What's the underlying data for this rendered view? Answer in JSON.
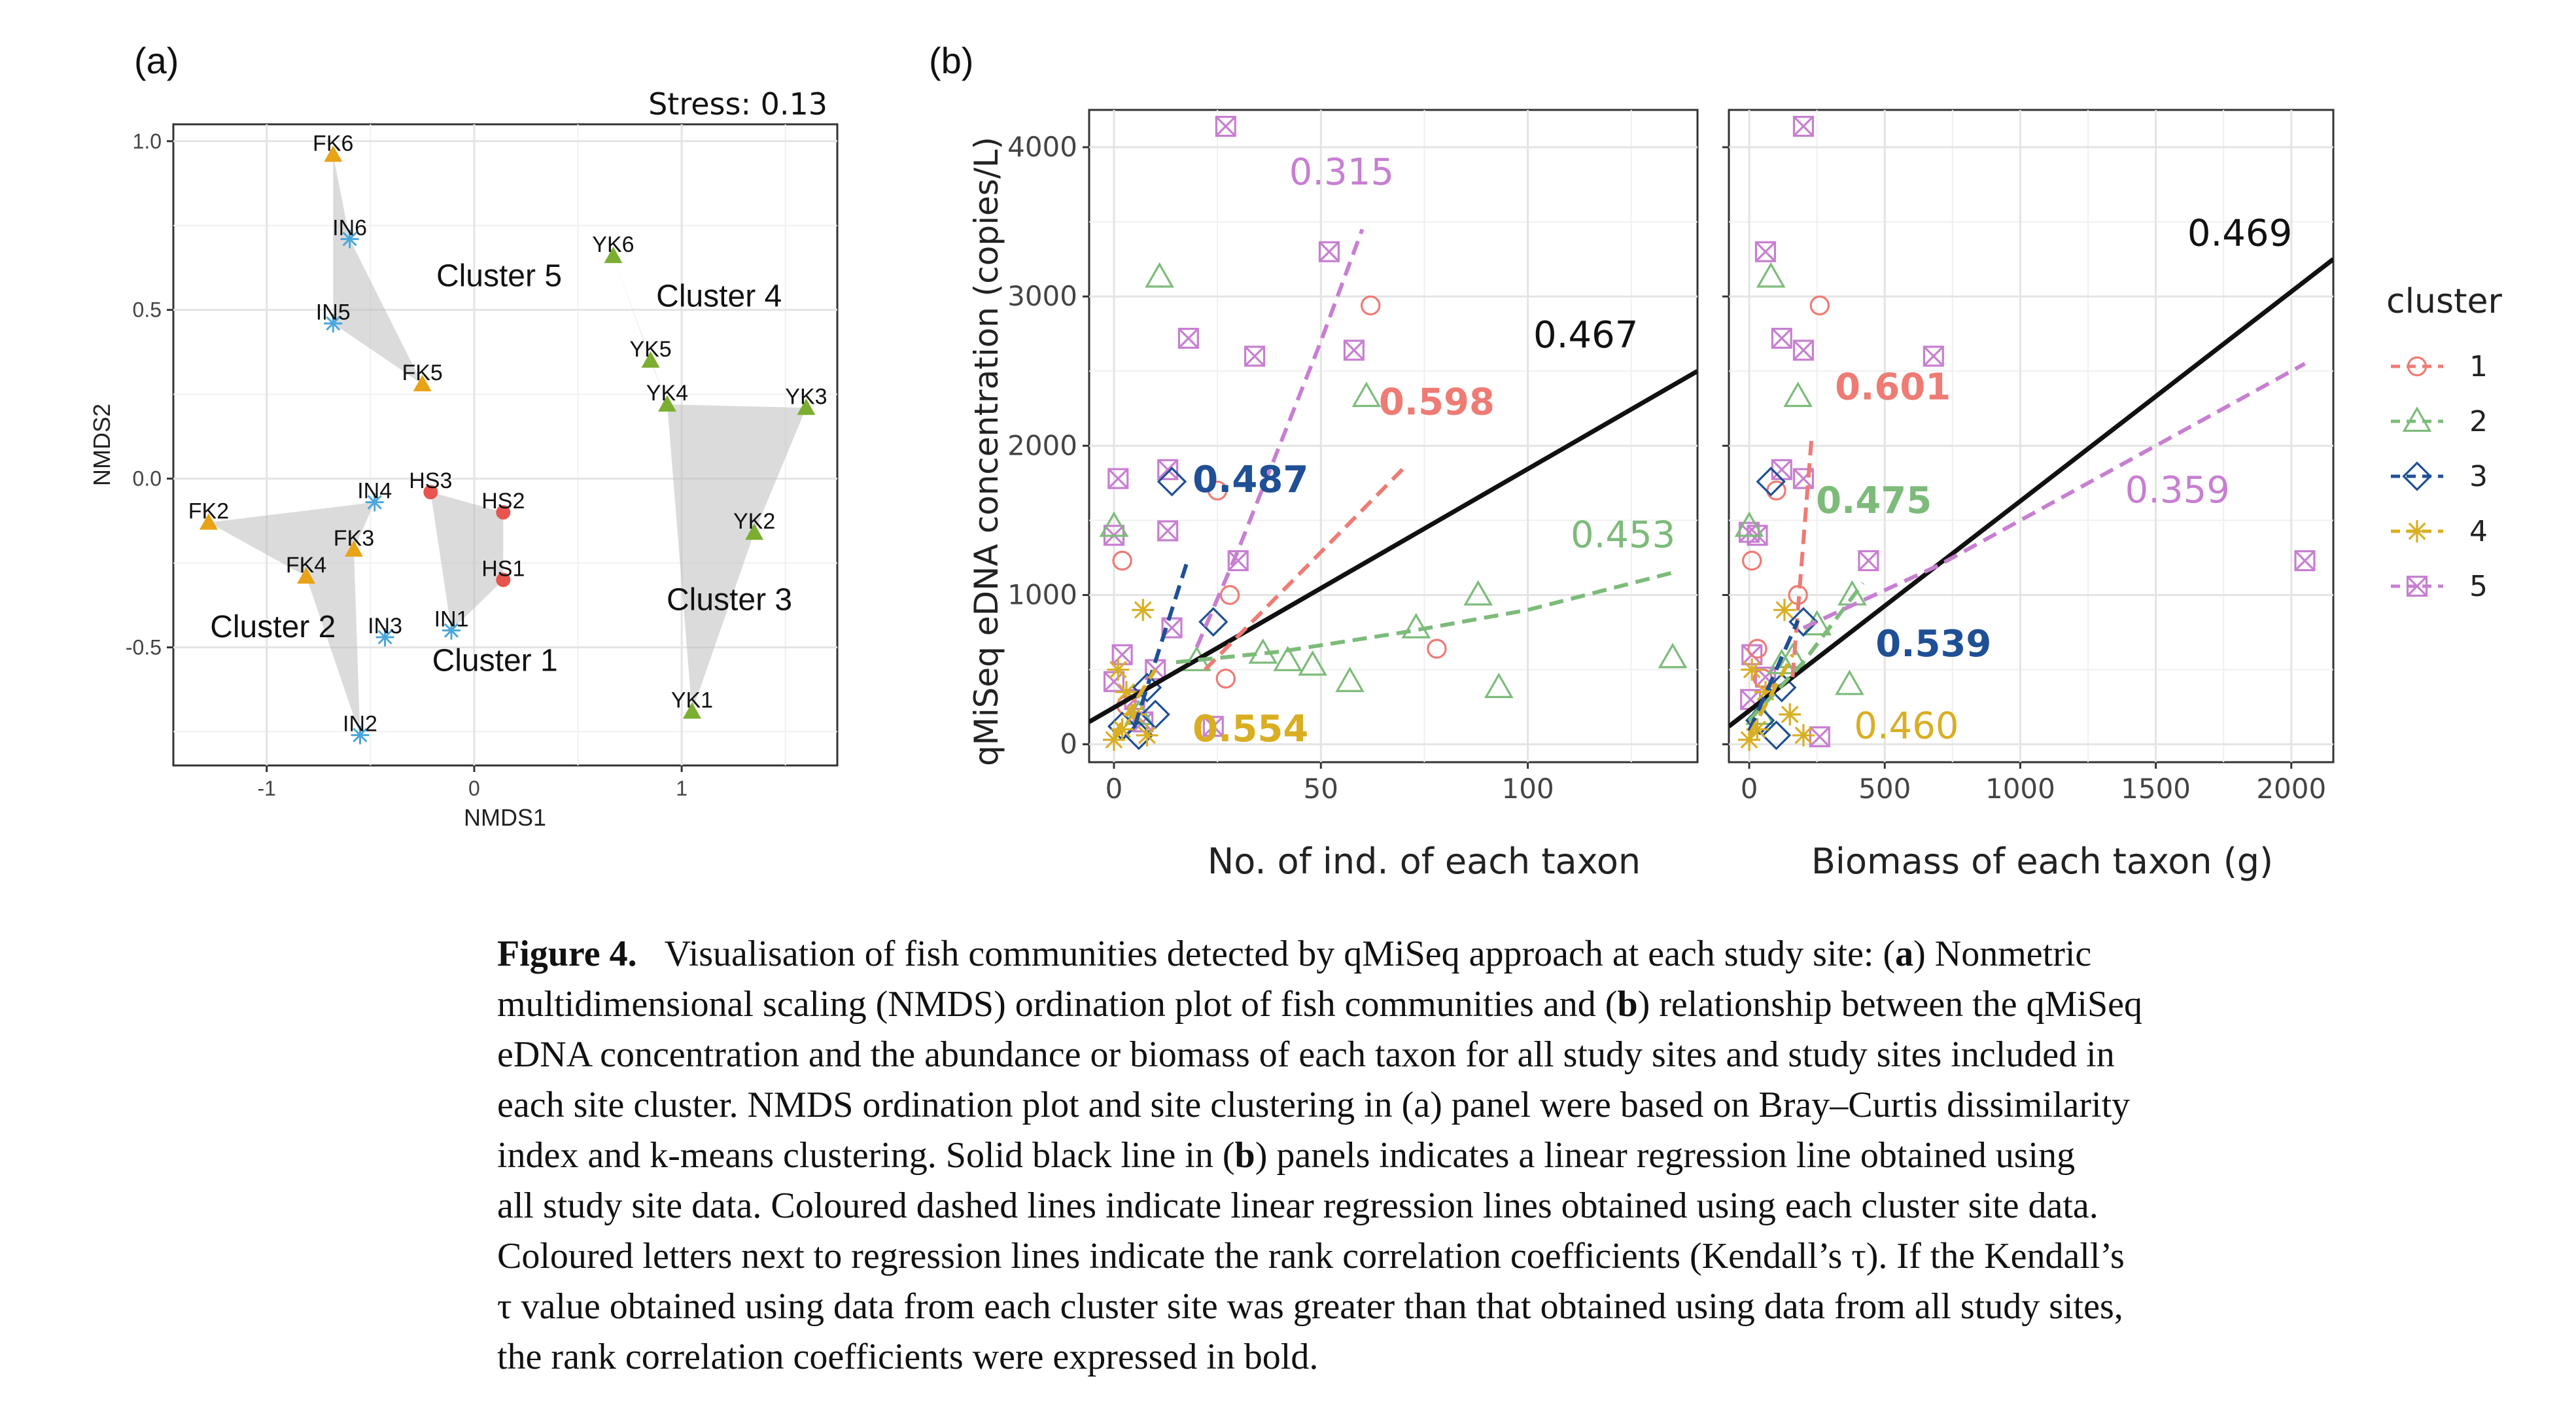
{
  "panel_a": {
    "label": "(a)",
    "stress_text": "Stress: 0.13",
    "xlabel": "NMDS1",
    "ylabel": "NMDS2",
    "xlim": [
      -1.45,
      1.75
    ],
    "ylim": [
      -0.85,
      1.05
    ],
    "xticks": [
      {
        "v": -1,
        "t": "-1"
      },
      {
        "v": 0,
        "t": "0"
      },
      {
        "v": 1,
        "t": "1"
      }
    ],
    "yticks": [
      {
        "v": 1.0,
        "t": "1.0"
      },
      {
        "v": 0.5,
        "t": "0.5"
      },
      {
        "v": 0.0,
        "t": "0.0"
      },
      {
        "v": -0.5,
        "t": "-0.5"
      }
    ],
    "sites": [
      {
        "id": "FK6",
        "x": -0.68,
        "y": 0.96,
        "cluster": "2"
      },
      {
        "id": "IN6",
        "x": -0.6,
        "y": 0.71,
        "cluster": "5"
      },
      {
        "id": "IN5",
        "x": -0.68,
        "y": 0.46,
        "cluster": "5"
      },
      {
        "id": "FK5",
        "x": -0.25,
        "y": 0.28,
        "cluster": "2"
      },
      {
        "id": "YK6",
        "x": 0.67,
        "y": 0.66,
        "cluster": "3"
      },
      {
        "id": "YK5",
        "x": 0.85,
        "y": 0.35,
        "cluster": "3"
      },
      {
        "id": "YK4",
        "x": 0.93,
        "y": 0.22,
        "cluster": "3"
      },
      {
        "id": "YK3",
        "x": 1.6,
        "y": 0.21,
        "cluster": "3"
      },
      {
        "id": "YK2",
        "x": 1.35,
        "y": -0.16,
        "cluster": "3"
      },
      {
        "id": "YK1",
        "x": 1.05,
        "y": -0.69,
        "cluster": "3"
      },
      {
        "id": "IN4",
        "x": -0.48,
        "y": -0.07,
        "cluster": "5"
      },
      {
        "id": "HS3",
        "x": -0.21,
        "y": -0.04,
        "cluster": "1"
      },
      {
        "id": "HS2",
        "x": 0.14,
        "y": -0.1,
        "cluster": "1"
      },
      {
        "id": "HS1",
        "x": 0.14,
        "y": -0.3,
        "cluster": "1"
      },
      {
        "id": "FK2",
        "x": -1.28,
        "y": -0.13,
        "cluster": "2"
      },
      {
        "id": "FK3",
        "x": -0.58,
        "y": -0.21,
        "cluster": "2"
      },
      {
        "id": "FK4",
        "x": -0.81,
        "y": -0.29,
        "cluster": "2"
      },
      {
        "id": "IN1",
        "x": -0.11,
        "y": -0.45,
        "cluster": "5"
      },
      {
        "id": "IN3",
        "x": -0.43,
        "y": -0.47,
        "cluster": "5"
      },
      {
        "id": "IN2",
        "x": -0.55,
        "y": -0.76,
        "cluster": "5"
      }
    ],
    "hulls": [
      {
        "label": "Cluster 5",
        "points": [
          "FK6",
          "IN6",
          "FK5",
          "IN5"
        ],
        "lx": 0.12,
        "ly": 0.57
      },
      {
        "label": "Cluster 4",
        "points": [
          "YK6",
          "YK4",
          "YK5"
        ],
        "lx": 1.18,
        "ly": 0.51
      },
      {
        "label": "Cluster 3",
        "points": [
          "YK3",
          "YK2",
          "YK1",
          "YK4"
        ],
        "lx": 1.23,
        "ly": -0.39
      },
      {
        "label": "Cluster 2",
        "points": [
          "FK2",
          "IN4",
          "FK3",
          "IN2",
          "FK4"
        ],
        "lx": -0.97,
        "ly": -0.47
      },
      {
        "label": "Cluster 1",
        "points": [
          "HS3",
          "HS2",
          "HS1",
          "IN1"
        ],
        "lx": 0.1,
        "ly": -0.57
      }
    ]
  },
  "panel_b": {
    "label": "(b)",
    "ylabel": "qMiSeq eDNA concentration (copies/L)",
    "ylim": [
      -120,
      4250
    ],
    "yticks": [
      0,
      1000,
      2000,
      3000,
      4000
    ],
    "legend_title": "cluster",
    "legend_items": [
      "1",
      "2",
      "3",
      "4",
      "5"
    ],
    "cluster_colors": {
      "1": "#ee7b74",
      "2": "#7dbb7a",
      "3": "#1f4f95",
      "4": "#d9ae22",
      "5": "#c77fd1"
    },
    "cluster_shapes": {
      "1": "circle",
      "2": "triangle",
      "3": "diamond",
      "4": "star",
      "5": "boxx"
    },
    "left": {
      "xlabel": "No. of ind. of each taxon",
      "xlim": [
        -6,
        141
      ],
      "xticks": [
        0,
        50,
        100
      ],
      "points": [
        {
          "c": "5",
          "x": 27,
          "y": 4140
        },
        {
          "c": "5",
          "x": 52,
          "y": 3300
        },
        {
          "c": "5",
          "x": 34,
          "y": 2600
        },
        {
          "c": "5",
          "x": 58,
          "y": 2640
        },
        {
          "c": "5",
          "x": 18,
          "y": 2720
        },
        {
          "c": "5",
          "x": 1,
          "y": 1780
        },
        {
          "c": "5",
          "x": 13,
          "y": 1840
        },
        {
          "c": "5",
          "x": 13,
          "y": 1430
        },
        {
          "c": "5",
          "x": 0,
          "y": 1400
        },
        {
          "c": "5",
          "x": 30,
          "y": 1230
        },
        {
          "c": "5",
          "x": 14,
          "y": 780
        },
        {
          "c": "5",
          "x": 10,
          "y": 500
        },
        {
          "c": "5",
          "x": 24,
          "y": 120
        },
        {
          "c": "5",
          "x": 2,
          "y": 600
        },
        {
          "c": "5",
          "x": 5,
          "y": 300
        },
        {
          "c": "5",
          "x": 7,
          "y": 150
        },
        {
          "c": "5",
          "x": 0,
          "y": 420
        },
        {
          "c": "1",
          "x": 62,
          "y": 2940
        },
        {
          "c": "1",
          "x": 25,
          "y": 1700
        },
        {
          "c": "1",
          "x": 28,
          "y": 1000
        },
        {
          "c": "1",
          "x": 78,
          "y": 640
        },
        {
          "c": "1",
          "x": 27,
          "y": 440
        },
        {
          "c": "1",
          "x": 2,
          "y": 1230
        },
        {
          "c": "1",
          "x": 3,
          "y": 260
        },
        {
          "c": "2",
          "x": 11,
          "y": 3130
        },
        {
          "c": "2",
          "x": 61,
          "y": 2330
        },
        {
          "c": "2",
          "x": 0,
          "y": 1460
        },
        {
          "c": "2",
          "x": 88,
          "y": 1000
        },
        {
          "c": "2",
          "x": 73,
          "y": 780
        },
        {
          "c": "2",
          "x": 135,
          "y": 580
        },
        {
          "c": "2",
          "x": 36,
          "y": 610
        },
        {
          "c": "2",
          "x": 42,
          "y": 560
        },
        {
          "c": "2",
          "x": 48,
          "y": 530
        },
        {
          "c": "2",
          "x": 57,
          "y": 420
        },
        {
          "c": "2",
          "x": 93,
          "y": 380
        },
        {
          "c": "2",
          "x": 20,
          "y": 560
        },
        {
          "c": "2",
          "x": 6,
          "y": 200
        },
        {
          "c": "3",
          "x": 14,
          "y": 1760
        },
        {
          "c": "3",
          "x": 24,
          "y": 820
        },
        {
          "c": "3",
          "x": 8,
          "y": 380
        },
        {
          "c": "3",
          "x": 10,
          "y": 200
        },
        {
          "c": "3",
          "x": 6,
          "y": 60
        },
        {
          "c": "3",
          "x": 2,
          "y": 120
        },
        {
          "c": "4",
          "x": 7,
          "y": 900
        },
        {
          "c": "4",
          "x": 1,
          "y": 500
        },
        {
          "c": "4",
          "x": 3,
          "y": 350
        },
        {
          "c": "4",
          "x": 5,
          "y": 200
        },
        {
          "c": "4",
          "x": 2,
          "y": 100
        },
        {
          "c": "4",
          "x": 8,
          "y": 60
        },
        {
          "c": "4",
          "x": 0,
          "y": 30
        }
      ],
      "lines": [
        {
          "c": "all",
          "x": [
            -6,
            141
          ],
          "y": [
            150,
            2500
          ]
        },
        {
          "c": "1",
          "x": [
            22,
            70
          ],
          "y": [
            500,
            1850
          ]
        },
        {
          "c": "2",
          "x": [
            15,
            40,
            70,
            100,
            135
          ],
          "y": [
            550,
            620,
            750,
            900,
            1150
          ]
        },
        {
          "c": "3",
          "x": [
            5,
            18
          ],
          "y": [
            120,
            1250
          ]
        },
        {
          "c": "4",
          "x": [
            0,
            10
          ],
          "y": [
            60,
            500
          ]
        },
        {
          "c": "5",
          "x": [
            20,
            30,
            40,
            50,
            60
          ],
          "y": [
            650,
            1300,
            2000,
            2700,
            3450
          ]
        }
      ],
      "labels": [
        {
          "text": "0.315",
          "c": "5",
          "x": 55,
          "y": 3750,
          "bold": false
        },
        {
          "text": "0.467",
          "c": "all",
          "x": 114,
          "y": 2660,
          "bold": false
        },
        {
          "text": "0.598",
          "c": "1",
          "x": 78,
          "y": 2210,
          "bold": true
        },
        {
          "text": "0.487",
          "c": "3",
          "x": 33,
          "y": 1690,
          "bold": true
        },
        {
          "text": "0.453",
          "c": "2",
          "x": 123,
          "y": 1320,
          "bold": false
        },
        {
          "text": "0.554",
          "c": "4",
          "x": 33,
          "y": 20,
          "bold": true
        }
      ]
    },
    "right": {
      "xlabel": "Biomass of each taxon (g)",
      "xlim": [
        -75,
        2155
      ],
      "xticks": [
        0,
        500,
        1000,
        1500,
        2000
      ],
      "points": [
        {
          "c": "5",
          "x": 200,
          "y": 4140
        },
        {
          "c": "5",
          "x": 60,
          "y": 3300
        },
        {
          "c": "5",
          "x": 120,
          "y": 2720
        },
        {
          "c": "5",
          "x": 200,
          "y": 2640
        },
        {
          "c": "5",
          "x": 680,
          "y": 2600
        },
        {
          "c": "5",
          "x": 120,
          "y": 1840
        },
        {
          "c": "5",
          "x": 200,
          "y": 1780
        },
        {
          "c": "5",
          "x": 2050,
          "y": 1230
        },
        {
          "c": "5",
          "x": 440,
          "y": 1230
        },
        {
          "c": "5",
          "x": 0,
          "y": 1420
        },
        {
          "c": "5",
          "x": 30,
          "y": 1400
        },
        {
          "c": "5",
          "x": 10,
          "y": 600
        },
        {
          "c": "5",
          "x": 260,
          "y": 50
        },
        {
          "c": "5",
          "x": 5,
          "y": 300
        },
        {
          "c": "5",
          "x": 60,
          "y": 450
        },
        {
          "c": "1",
          "x": 260,
          "y": 2940
        },
        {
          "c": "1",
          "x": 100,
          "y": 1700
        },
        {
          "c": "1",
          "x": 180,
          "y": 1000
        },
        {
          "c": "1",
          "x": 10,
          "y": 1230
        },
        {
          "c": "1",
          "x": 30,
          "y": 640
        },
        {
          "c": "1",
          "x": 50,
          "y": 440
        },
        {
          "c": "2",
          "x": 80,
          "y": 3130
        },
        {
          "c": "2",
          "x": 180,
          "y": 2330
        },
        {
          "c": "2",
          "x": 0,
          "y": 1460
        },
        {
          "c": "2",
          "x": 380,
          "y": 1000
        },
        {
          "c": "2",
          "x": 250,
          "y": 800
        },
        {
          "c": "2",
          "x": 160,
          "y": 580
        },
        {
          "c": "2",
          "x": 370,
          "y": 400
        },
        {
          "c": "2",
          "x": 120,
          "y": 540
        },
        {
          "c": "2",
          "x": 40,
          "y": 200
        },
        {
          "c": "3",
          "x": 80,
          "y": 1760
        },
        {
          "c": "3",
          "x": 200,
          "y": 820
        },
        {
          "c": "3",
          "x": 120,
          "y": 380
        },
        {
          "c": "3",
          "x": 40,
          "y": 160
        },
        {
          "c": "3",
          "x": 100,
          "y": 60
        },
        {
          "c": "4",
          "x": 130,
          "y": 900
        },
        {
          "c": "4",
          "x": 10,
          "y": 500
        },
        {
          "c": "4",
          "x": 60,
          "y": 350
        },
        {
          "c": "4",
          "x": 150,
          "y": 200
        },
        {
          "c": "4",
          "x": 30,
          "y": 100
        },
        {
          "c": "4",
          "x": 200,
          "y": 60
        },
        {
          "c": "4",
          "x": 0,
          "y": 30
        }
      ],
      "lines": [
        {
          "c": "all",
          "x": [
            -75,
            2155
          ],
          "y": [
            120,
            3250
          ]
        },
        {
          "c": "1",
          "x": [
            160,
            230
          ],
          "y": [
            450,
            2050
          ]
        },
        {
          "c": "2",
          "x": [
            0,
            200,
            420
          ],
          "y": [
            160,
            550,
            1080
          ]
        },
        {
          "c": "3",
          "x": [
            0,
            180
          ],
          "y": [
            90,
            830
          ]
        },
        {
          "c": "4",
          "x": [
            0,
            160
          ],
          "y": [
            60,
            600
          ]
        },
        {
          "c": "5",
          "x": [
            200,
            700,
            1200,
            1700,
            2050
          ],
          "y": [
            780,
            1200,
            1700,
            2200,
            2550
          ]
        }
      ],
      "labels": [
        {
          "text": "0.469",
          "c": "all",
          "x": 1810,
          "y": 3340,
          "bold": false
        },
        {
          "text": "0.601",
          "c": "1",
          "x": 530,
          "y": 2310,
          "bold": true
        },
        {
          "text": "0.475",
          "c": "2",
          "x": 460,
          "y": 1550,
          "bold": true
        },
        {
          "text": "0.359",
          "c": "5",
          "x": 1580,
          "y": 1620,
          "bold": false
        },
        {
          "text": "0.539",
          "c": "3",
          "x": 680,
          "y": 590,
          "bold": true
        },
        {
          "text": "0.460",
          "c": "4",
          "x": 580,
          "y": 40,
          "bold": false
        }
      ]
    }
  },
  "caption": {
    "fig_label": "Figure 4.",
    "line1": "Visualisation of fish communities detected by qMiSeq approach at each study site: (",
    "b_a": "a",
    "line1b": ") Nonmetric",
    "line2a": "multidimensional scaling (NMDS) ordination plot of fish communities and (",
    "b_b": "b",
    "line2b": ") relationship between the qMiSeq",
    "line3": "eDNA concentration and the abundance or biomass of each taxon for all study sites and study sites included in",
    "line4": "each site cluster. NMDS ordination plot and site clustering in (a) panel were based on Bray–Curtis dissimilarity",
    "line5a": "index and k-means clustering. Solid black line in (",
    "b_c": "b",
    "line5b": ") panels indicates a linear regression line obtained using",
    "line6": "all study site data. Coloured dashed lines indicate linear regression lines obtained using each cluster site data.",
    "line7": "Coloured letters next to regression lines indicate the rank correlation coefficients (Kendall’s τ). If the Kendall’s",
    "line8": "τ value obtained using data from each cluster site was greater than that obtained using data from all study sites,",
    "line9": "the rank correlation coefficients were expressed in bold."
  }
}
